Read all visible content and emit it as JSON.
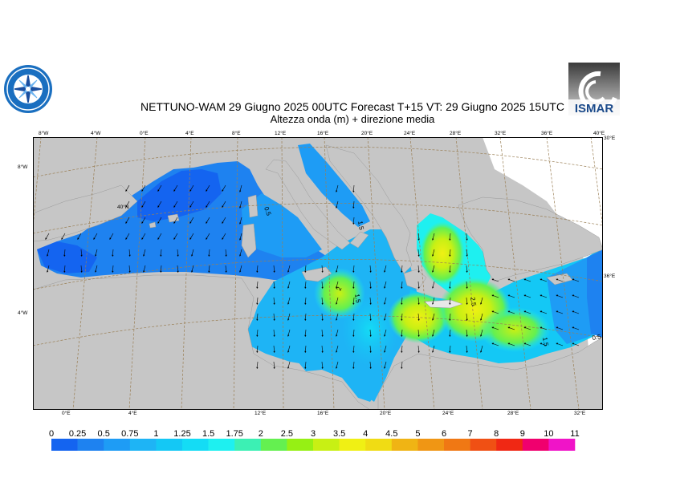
{
  "title": {
    "line1": "NETTUNO-WAM  29   Giugno  2025 00UTC Forecast T+15 VT: 29   Giugno  2025 15UTC",
    "line2": "Altezza onda (m) + direzione media"
  },
  "logos": {
    "right": "ISMAR",
    "left": "circular-institute-logo"
  },
  "map": {
    "top_lon_labels": [
      "8°W",
      "4°W",
      "0°E",
      "4°E",
      "8°E",
      "12°E",
      "16°E",
      "20°E",
      "24°E",
      "28°E",
      "32°E",
      "36°E",
      "40°E"
    ],
    "bottom_lon_labels": [
      "0°E",
      "4°E",
      "12°E",
      "16°E",
      "20°E",
      "24°E",
      "28°E",
      "32°E"
    ],
    "left_labels": [
      "8°W",
      "4°W"
    ],
    "inner_labels": [
      "40°N",
      "30°E",
      "36°E"
    ],
    "contour_labels": [
      "0.5",
      "1.5",
      "1.5",
      "2",
      "2.5",
      "1.5",
      "1.5",
      "2",
      "2",
      "2",
      "1.5",
      "1.5",
      "0.5"
    ],
    "colors": {
      "land": "#c6c6c6",
      "sea_low": "#1466f0",
      "grid": "#9a7f55"
    }
  },
  "legend": {
    "labels": [
      "0",
      "0.25",
      "0.5",
      "0.75",
      "1",
      "1.25",
      "1.5",
      "1.75",
      "2",
      "2.5",
      "3",
      "3.5",
      "4",
      "4.5",
      "5",
      "6",
      "7",
      "8",
      "9",
      "10",
      "11"
    ],
    "colors": [
      "#1464f0",
      "#1e82f0",
      "#1e9cf5",
      "#1eb4f5",
      "#14c8f5",
      "#14dcf5",
      "#1ef0f0",
      "#3cf0b4",
      "#64f050",
      "#96f014",
      "#c8f014",
      "#f0f014",
      "#f0dc14",
      "#f0b414",
      "#f09614",
      "#f07814",
      "#f05014",
      "#f02814",
      "#f0006e",
      "#f014c8"
    ]
  }
}
